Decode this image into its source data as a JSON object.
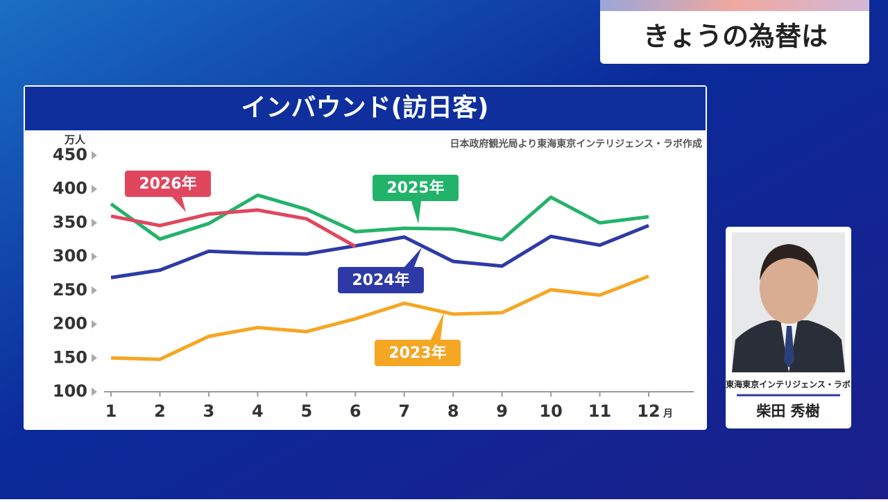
{
  "banner": {
    "title": "きょうの為替は"
  },
  "chart_data": {
    "type": "line",
    "title": "インバウンド(訪日客)",
    "source": "日本政府観光局より東海東京インテリジェンス・ラボ作成",
    "y_unit": "万人",
    "x_unit": "月",
    "categories": [
      "1",
      "2",
      "3",
      "4",
      "5",
      "6",
      "7",
      "8",
      "9",
      "10",
      "11",
      "12"
    ],
    "series": [
      {
        "name": "2023年",
        "color": "#f5a623",
        "values": [
          150,
          148,
          182,
          195,
          189,
          208,
          231,
          215,
          217,
          251,
          243,
          271
        ]
      },
      {
        "name": "2024年",
        "color": "#2d3aa6",
        "values": [
          269,
          280,
          308,
          305,
          304,
          316,
          329,
          293,
          286,
          330,
          317,
          346
        ]
      },
      {
        "name": "2025年",
        "color": "#22b36a",
        "values": [
          378,
          326,
          349,
          391,
          370,
          337,
          342,
          341,
          325,
          388,
          350,
          359
        ]
      },
      {
        "name": "2026年",
        "color": "#e0475f",
        "values": [
          360,
          346,
          363,
          369,
          356,
          315,
          null,
          null,
          null,
          null,
          null,
          null
        ]
      }
    ],
    "ylim": [
      100,
      450
    ],
    "yticks": [
      100,
      150,
      200,
      250,
      300,
      350,
      400,
      450
    ],
    "grid": false
  },
  "presenter": {
    "affiliation": "東海東京インテリジェンス・ラボ",
    "name": "柴田 秀樹"
  }
}
